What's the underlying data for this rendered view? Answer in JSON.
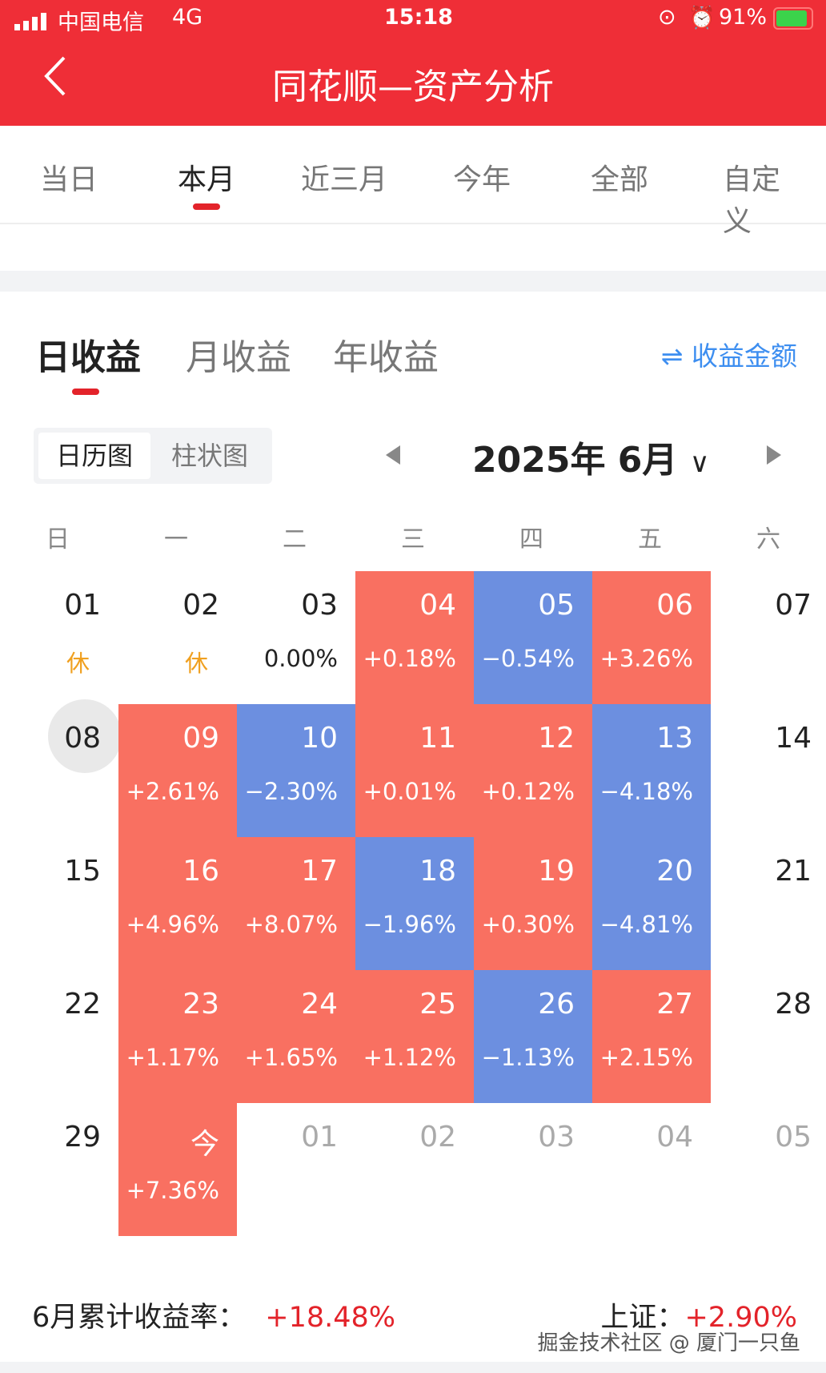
{
  "status": {
    "carrier": "中国电信",
    "network": "4G",
    "time": "15:18",
    "battery": "91%"
  },
  "header": {
    "title": "同花顺—资产分析"
  },
  "period_tabs": [
    "当日",
    "本月",
    "近三月",
    "今年",
    "全部",
    "自定义"
  ],
  "active_period": 1,
  "section_tabs": [
    "日收益",
    "月收益",
    "年收益"
  ],
  "swap_label": "收益金额",
  "view_toggle": {
    "calendar": "日历图",
    "bar": "柱状图"
  },
  "month": "2025年 6月",
  "weekdays": [
    "日",
    "一",
    "二",
    "三",
    "四",
    "五",
    "六"
  ],
  "colors": {
    "up": "#f97061",
    "down": "#6c8fe0",
    "brand": "#ef2e37"
  },
  "calendar": [
    [
      {
        "d": "01",
        "p": "休",
        "t": "rest"
      },
      {
        "d": "02",
        "p": "休",
        "t": "rest"
      },
      {
        "d": "03",
        "p": "0.00%",
        "t": "none"
      },
      {
        "d": "04",
        "p": "+0.18%",
        "t": "up"
      },
      {
        "d": "05",
        "p": "−0.54%",
        "t": "down"
      },
      {
        "d": "06",
        "p": "+3.26%",
        "t": "up"
      },
      {
        "d": "07",
        "p": "",
        "t": "none"
      }
    ],
    [
      {
        "d": "08",
        "p": "",
        "t": "none"
      },
      {
        "d": "09",
        "p": "+2.61%",
        "t": "up"
      },
      {
        "d": "10",
        "p": "−2.30%",
        "t": "down"
      },
      {
        "d": "11",
        "p": "+0.01%",
        "t": "up"
      },
      {
        "d": "12",
        "p": "+0.12%",
        "t": "up"
      },
      {
        "d": "13",
        "p": "−4.18%",
        "t": "down"
      },
      {
        "d": "14",
        "p": "",
        "t": "none"
      }
    ],
    [
      {
        "d": "15",
        "p": "",
        "t": "none"
      },
      {
        "d": "16",
        "p": "+4.96%",
        "t": "up"
      },
      {
        "d": "17",
        "p": "+8.07%",
        "t": "up"
      },
      {
        "d": "18",
        "p": "−1.96%",
        "t": "down"
      },
      {
        "d": "19",
        "p": "+0.30%",
        "t": "up"
      },
      {
        "d": "20",
        "p": "−4.81%",
        "t": "down"
      },
      {
        "d": "21",
        "p": "",
        "t": "none"
      }
    ],
    [
      {
        "d": "22",
        "p": "",
        "t": "none"
      },
      {
        "d": "23",
        "p": "+1.17%",
        "t": "up"
      },
      {
        "d": "24",
        "p": "+1.65%",
        "t": "up"
      },
      {
        "d": "25",
        "p": "+1.12%",
        "t": "up"
      },
      {
        "d": "26",
        "p": "−1.13%",
        "t": "down"
      },
      {
        "d": "27",
        "p": "+2.15%",
        "t": "up"
      },
      {
        "d": "28",
        "p": "",
        "t": "none"
      }
    ],
    [
      {
        "d": "29",
        "p": "",
        "t": "none"
      },
      {
        "d": "今",
        "p": "+7.36%",
        "t": "up"
      },
      {
        "d": "01",
        "p": "",
        "t": "next"
      },
      {
        "d": "02",
        "p": "",
        "t": "next"
      },
      {
        "d": "03",
        "p": "",
        "t": "next"
      },
      {
        "d": "04",
        "p": "",
        "t": "next"
      },
      {
        "d": "05",
        "p": "",
        "t": "next"
      }
    ]
  ],
  "summary": {
    "label": "6月累计收益率：",
    "value": "+18.48%",
    "index_label": "上证：",
    "index_value": "+2.90%"
  },
  "watermark": "掘金技术社区 @ 厦门一只鱼"
}
